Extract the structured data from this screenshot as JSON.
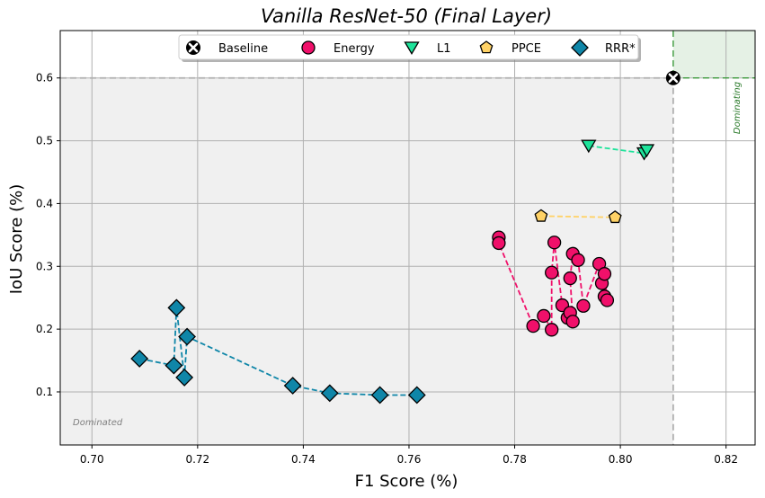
{
  "chart_data": {
    "type": "scatter",
    "title": "Vanilla ResNet-50 (Final Layer)",
    "xlabel": "F1 Score (%)",
    "ylabel": "IoU Score (%)",
    "xlim": [
      0.694,
      0.8255
    ],
    "ylim": [
      0.0155,
      0.6755
    ],
    "xticks": [
      0.7,
      0.72,
      0.74,
      0.76,
      0.78,
      0.8,
      0.82
    ],
    "xtick_labels": [
      "0.70",
      "0.72",
      "0.74",
      "0.76",
      "0.78",
      "0.80",
      "0.82"
    ],
    "yticks": [
      0.1,
      0.2,
      0.3,
      0.4,
      0.5,
      0.6
    ],
    "ytick_labels": [
      "0.1",
      "0.2",
      "0.3",
      "0.4",
      "0.5",
      "0.6"
    ],
    "grid": true,
    "legend_position": "top-center",
    "baseline": {
      "x": 0.81,
      "y": 0.6
    },
    "region_labels": {
      "dominating": "Dominating",
      "dominated": "Dominated"
    },
    "colors": {
      "dominating_fill": "#e5f1e5",
      "dominating_border": "#3c9a3c",
      "dominated_fill": "#f0f0f0",
      "baseline_line": "#b0b0b0"
    },
    "series": [
      {
        "name": "Baseline",
        "marker": "x-circle",
        "color": "#ffffff",
        "line": false,
        "points": [
          [
            0.81,
            0.6
          ]
        ]
      },
      {
        "name": "Energy",
        "marker": "circle",
        "color": "#f0106a",
        "line": true,
        "points": [
          [
            0.777,
            0.346
          ],
          [
            0.777,
            0.337
          ],
          [
            0.7835,
            0.205
          ],
          [
            0.7855,
            0.221
          ],
          [
            0.787,
            0.199
          ],
          [
            0.787,
            0.29
          ],
          [
            0.7875,
            0.338
          ],
          [
            0.789,
            0.238
          ],
          [
            0.79,
            0.218
          ],
          [
            0.7905,
            0.226
          ],
          [
            0.791,
            0.212
          ],
          [
            0.7905,
            0.281
          ],
          [
            0.791,
            0.32
          ],
          [
            0.792,
            0.31
          ],
          [
            0.793,
            0.237
          ],
          [
            0.796,
            0.304
          ],
          [
            0.7965,
            0.273
          ],
          [
            0.797,
            0.252
          ],
          [
            0.797,
            0.288
          ],
          [
            0.7975,
            0.246
          ]
        ]
      },
      {
        "name": "L1",
        "marker": "triangle-down",
        "color": "#1de39a",
        "line": true,
        "points": [
          [
            0.794,
            0.492
          ],
          [
            0.8045,
            0.48
          ],
          [
            0.805,
            0.485
          ]
        ]
      },
      {
        "name": "PPCE",
        "marker": "pentagon",
        "color": "#ffd266",
        "line": true,
        "points": [
          [
            0.785,
            0.38
          ],
          [
            0.799,
            0.378
          ]
        ]
      },
      {
        "name": "RRR*",
        "marker": "diamond",
        "color": "#0f86a8",
        "line": true,
        "points": [
          [
            0.709,
            0.153
          ],
          [
            0.7155,
            0.142
          ],
          [
            0.716,
            0.234
          ],
          [
            0.7175,
            0.123
          ],
          [
            0.718,
            0.188
          ],
          [
            0.738,
            0.11
          ],
          [
            0.745,
            0.098
          ],
          [
            0.7545,
            0.095
          ],
          [
            0.7615,
            0.095
          ]
        ]
      }
    ]
  }
}
